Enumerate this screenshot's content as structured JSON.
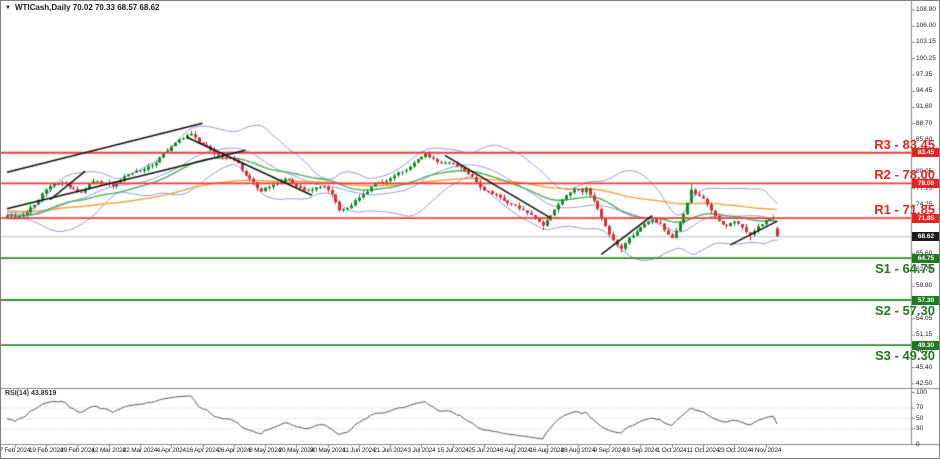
{
  "window": {
    "title": "WTICash,Daily 70.02 70.33 68.57 68.62",
    "icon_glyph": "▼"
  },
  "colors": {
    "background": "#ffffff",
    "candle_up": "#1a8a2a",
    "candle_down": "#cf3338",
    "bollinger": "#9a9ade",
    "ma_fast": "#4fae5f",
    "ma_slow": "#f2a33c",
    "resistance_line": "#f53b3b",
    "support_line": "#2e8b2e",
    "current_price_line": "#b8bfca",
    "badge_resistance_bg": "#e42525",
    "badge_support_bg": "#1f7a1f",
    "badge_current_bg": "#1a1a1a",
    "rsi_line": "#5a5a66",
    "guide_dotted": "#c9c9c9",
    "axis": "#8a8a8a",
    "trendline": "#101010"
  },
  "chart_data": {
    "type": "candlestick",
    "symbol": "WTICash",
    "timeframe": "Daily",
    "last_bar": {
      "open": 70.02,
      "high": 70.33,
      "low": 68.57,
      "close": 68.62
    },
    "current_price_text": "68.62",
    "y_range": [
      41.85,
      110.4
    ],
    "y_axis_ticks": [
      "108.90",
      "106.00",
      "103.15",
      "100.25",
      "97.35",
      "94.45",
      "91.60",
      "88.70",
      "85.80",
      "82.90",
      "80.05",
      "77.15",
      "74.25",
      "65.60",
      "62.70",
      "59.80",
      "56.90",
      "54.05",
      "51.15",
      "48.25",
      "45.40",
      "42.50"
    ],
    "x_axis_dates": [
      "7 Feb 2024",
      "19 Feb 2024",
      "29 Feb 2024",
      "12 Mar 2024",
      "22 Mar 2024",
      "4 Apr 2024",
      "16 Apr 2024",
      "26 Apr 2024",
      "8 May 2024",
      "20 May 2024",
      "30 May 2024",
      "11 Jun 2024",
      "21 Jun 2024",
      "3 Jul 2024",
      "15 Jul 2024",
      "25 Jul 2024",
      "6 Aug 2024",
      "16 Aug 2024",
      "28 Aug 2024",
      "9 Sep 2024",
      "19 Sep 2024",
      "1 Oct 2024",
      "11 Oct 2024",
      "23 Oct 2024",
      "4 Nov 2024"
    ],
    "levels": {
      "resistance": [
        {
          "name": "R3",
          "value": 83.45,
          "label": "R3 - 83.45",
          "axis_text": "83.45"
        },
        {
          "name": "R2",
          "value": 78.0,
          "label": "R2 - 78.00",
          "axis_text": "78.00"
        },
        {
          "name": "R1",
          "value": 71.85,
          "label": "R1 - 71.85",
          "axis_text": "71.85"
        }
      ],
      "support": [
        {
          "name": "S1",
          "value": 64.75,
          "label": "S1 - 64.75",
          "axis_text": "64.75"
        },
        {
          "name": "S2",
          "value": 57.3,
          "label": "S2 - 57.30",
          "axis_text": "57.30"
        },
        {
          "name": "S3",
          "value": 49.3,
          "label": "S3 - 49.30",
          "axis_text": "49.30"
        }
      ]
    },
    "bars": {
      "count": 198,
      "first_tick_bar": 2,
      "bars_per_tick": 8,
      "anchor_closes": [
        [
          0,
          72.3
        ],
        [
          2,
          71.8
        ],
        [
          4,
          72.4
        ],
        [
          7,
          74.2
        ],
        [
          9,
          76.2
        ],
        [
          12,
          77.9
        ],
        [
          14,
          78.1
        ],
        [
          17,
          77.0
        ],
        [
          19,
          76.4
        ],
        [
          22,
          78.4
        ],
        [
          25,
          78.1
        ],
        [
          27,
          77.5
        ],
        [
          29,
          78.5
        ],
        [
          31,
          79.6
        ],
        [
          33,
          80.2
        ],
        [
          35,
          80.5
        ],
        [
          37,
          81.2
        ],
        [
          39,
          82.6
        ],
        [
          41,
          83.8
        ],
        [
          43,
          85.2
        ],
        [
          45,
          86.0
        ],
        [
          47,
          86.8
        ],
        [
          49,
          85.2
        ],
        [
          51,
          84.6
        ],
        [
          53,
          83.2
        ],
        [
          55,
          82.7
        ],
        [
          57,
          82.5
        ],
        [
          59,
          81.6
        ],
        [
          61,
          79.4
        ],
        [
          63,
          78.2
        ],
        [
          65,
          76.6
        ],
        [
          67,
          77.4
        ],
        [
          69,
          78.1
        ],
        [
          71,
          78.8
        ],
        [
          73,
          78.0
        ],
        [
          75,
          77.2
        ],
        [
          77,
          76.8
        ],
        [
          79,
          77.3
        ],
        [
          81,
          77.4
        ],
        [
          83,
          76.1
        ],
        [
          85,
          73.2
        ],
        [
          87,
          73.6
        ],
        [
          89,
          75.0
        ],
        [
          91,
          76.1
        ],
        [
          93,
          77.4
        ],
        [
          95,
          78.2
        ],
        [
          97,
          78.4
        ],
        [
          99,
          79.4
        ],
        [
          101,
          80.1
        ],
        [
          103,
          81.0
        ],
        [
          105,
          82.3
        ],
        [
          107,
          83.3
        ],
        [
          109,
          82.4
        ],
        [
          111,
          81.6
        ],
        [
          113,
          81.7
        ],
        [
          115,
          81.0
        ],
        [
          117,
          80.2
        ],
        [
          119,
          79.2
        ],
        [
          121,
          77.3
        ],
        [
          123,
          76.6
        ],
        [
          125,
          75.9
        ],
        [
          127,
          74.9
        ],
        [
          129,
          74.3
        ],
        [
          131,
          73.5
        ],
        [
          133,
          72.8
        ],
        [
          135,
          71.9
        ],
        [
          137,
          70.5
        ],
        [
          139,
          72.3
        ],
        [
          141,
          74.3
        ],
        [
          143,
          75.9
        ],
        [
          145,
          77.0
        ],
        [
          147,
          76.5
        ],
        [
          148,
          77.2
        ],
        [
          150,
          74.9
        ],
        [
          152,
          71.8
        ],
        [
          153,
          70.4
        ],
        [
          155,
          67.9
        ],
        [
          157,
          66.4
        ],
        [
          159,
          68.4
        ],
        [
          161,
          69.5
        ],
        [
          163,
          70.8
        ],
        [
          165,
          71.6
        ],
        [
          167,
          70.9
        ],
        [
          169,
          68.9
        ],
        [
          170,
          68.3
        ],
        [
          172,
          71.0
        ],
        [
          174,
          74.6
        ],
        [
          175,
          76.9
        ],
        [
          176,
          76.1
        ],
        [
          178,
          75.3
        ],
        [
          180,
          73.2
        ],
        [
          182,
          71.3
        ],
        [
          184,
          70.5
        ],
        [
          186,
          71.2
        ],
        [
          188,
          70.2
        ],
        [
          190,
          68.9
        ],
        [
          192,
          70.4
        ],
        [
          194,
          71.4
        ],
        [
          196,
          71.9
        ],
        [
          197,
          68.9
        ]
      ],
      "overrides": {
        "47": {
          "high": 87.4
        },
        "137": {
          "low": 69.7
        },
        "157": {
          "low": 65.7
        },
        "175": {
          "high": 77.9
        },
        "190": {
          "low": 67.9
        },
        "197": {
          "open": 70.02,
          "high": 70.33,
          "low": 68.57,
          "close": 68.62
        }
      }
    },
    "trendlines": [
      [
        0,
        80.0,
        50,
        88.7
      ],
      [
        0,
        73.5,
        61,
        83.9
      ],
      [
        11,
        75.1,
        20,
        80.2
      ],
      [
        46,
        86.2,
        78,
        75.9
      ],
      [
        112,
        83.0,
        139,
        71.9
      ],
      [
        152,
        65.4,
        165,
        72.3
      ],
      [
        185,
        67.1,
        197,
        71.3
      ]
    ],
    "indicators": {
      "bollinger": {
        "period": 20,
        "deviation": 2
      },
      "ma_fast": {
        "period": 30,
        "method": "ema"
      },
      "ma_slow": {
        "period": 100,
        "method": "ema"
      },
      "rsi": {
        "label": "RSI(14) 43.8519",
        "period": 14,
        "value": 43.8519,
        "range": [
          0,
          100
        ],
        "guide_levels": [
          70,
          50,
          30
        ],
        "axis_ticks": [
          "100",
          "70",
          "50",
          "30",
          "0"
        ]
      }
    }
  }
}
